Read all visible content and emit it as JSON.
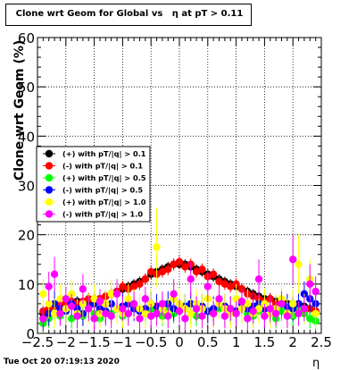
{
  "footer": {
    "timestamp": "Tue Oct 20 07:19:13 2020"
  },
  "chart_data": {
    "type": "scatter",
    "title": "Clone wrt Geom for Global vs   η at pT > 0.11",
    "xlabel": "η",
    "ylabel": "Clone wrt Geom (%)",
    "xlim": [
      -2.5,
      2.5
    ],
    "ylim": [
      0,
      60
    ],
    "x_ticks": [
      "−2.5",
      "−2",
      "−1.5",
      "−1",
      "−0.5",
      "0",
      "0.5",
      "1",
      "1.5",
      "2",
      "2.5"
    ],
    "y_ticks": [
      "0",
      "10",
      "20",
      "30",
      "40",
      "50",
      "60"
    ],
    "grid": true,
    "legend_position": "middle-left",
    "x": [
      -2.4,
      -2.3,
      -2.2,
      -2.1,
      -2.0,
      -1.9,
      -1.8,
      -1.7,
      -1.6,
      -1.5,
      -1.4,
      -1.3,
      -1.2,
      -1.1,
      -1.0,
      -0.9,
      -0.8,
      -0.7,
      -0.6,
      -0.5,
      -0.4,
      -0.3,
      -0.2,
      -0.1,
      0.0,
      0.1,
      0.2,
      0.3,
      0.4,
      0.5,
      0.6,
      0.7,
      0.8,
      0.9,
      1.0,
      1.1,
      1.2,
      1.3,
      1.4,
      1.5,
      1.6,
      1.7,
      1.8,
      1.9,
      2.0,
      2.1,
      2.2,
      2.3,
      2.4
    ],
    "series": [
      {
        "name": "(+) with pT/|q| > 0.1",
        "color": "#000000",
        "values": [
          4,
          5,
          5.5,
          6,
          6.5,
          6,
          6.5,
          6,
          6.5,
          7,
          7,
          7.5,
          8,
          8.5,
          9,
          9.5,
          10,
          10.5,
          11,
          12,
          12.5,
          13,
          13.5,
          14,
          14,
          14,
          13.5,
          13,
          12.5,
          12,
          11.5,
          11,
          10.5,
          10,
          9.5,
          9,
          8.5,
          8,
          7.5,
          7,
          7,
          6.5,
          6.5,
          6,
          6,
          5.5,
          5.5,
          5,
          4.5
        ],
        "errors": [
          1,
          1,
          1,
          1,
          1,
          1,
          1,
          1,
          1,
          1,
          1,
          1,
          1,
          1,
          1,
          1,
          1,
          1,
          1,
          1,
          1,
          1,
          1,
          1,
          1,
          1,
          1,
          1,
          1,
          1,
          1,
          1,
          1,
          1,
          1,
          1,
          1,
          1,
          1,
          1,
          1,
          1,
          1,
          1,
          1,
          1,
          1,
          1,
          1
        ]
      },
      {
        "name": "(-) with pT/|q| > 0.1",
        "color": "#ff0000",
        "values": [
          4.5,
          5,
          5.5,
          6,
          6,
          6.5,
          6,
          6.5,
          7,
          6.5,
          7,
          7.5,
          8,
          8.5,
          9.5,
          9,
          9.5,
          10,
          11,
          12.5,
          12,
          12.5,
          13,
          14,
          14.5,
          13.5,
          14,
          12.5,
          13,
          11.5,
          12,
          10.5,
          10,
          9.5,
          10,
          9,
          8,
          7.5,
          7,
          6.5,
          7,
          6,
          6.5,
          5.5,
          6,
          5.5,
          5,
          5,
          4.5
        ],
        "errors": [
          1.2,
          1.2,
          1.2,
          1.2,
          1.2,
          1.2,
          1.2,
          1.2,
          1.2,
          1.2,
          1.2,
          1.2,
          1.2,
          1.2,
          1.2,
          1.2,
          1.2,
          1.2,
          1.2,
          1.2,
          1.2,
          1.2,
          1.2,
          1.2,
          1.2,
          1.2,
          1.2,
          1.2,
          1.2,
          1.2,
          1.2,
          1.2,
          1.2,
          1.2,
          1.2,
          1.2,
          1.2,
          1.2,
          1.2,
          1.2,
          1.2,
          1.2,
          1.2,
          1.2,
          1.2,
          1.2,
          1.2,
          1.2,
          1.2
        ]
      },
      {
        "name": "(+) with pT/|q| > 0.5",
        "color": "#00ff00",
        "values": [
          2,
          3,
          4,
          3.5,
          4.5,
          3,
          4,
          3.5,
          5,
          4,
          3,
          4.5,
          4,
          5,
          3.5,
          4,
          5,
          4.5,
          4,
          5,
          4.5,
          3.5,
          5,
          4,
          4.5,
          5,
          4,
          3.5,
          5,
          4.5,
          4,
          5,
          3.5,
          4,
          4.5,
          5,
          4,
          3.5,
          4.5,
          5,
          4,
          3,
          4.5,
          4,
          3.5,
          5,
          4,
          3,
          2.5
        ],
        "errors": [
          2,
          2,
          2,
          2,
          2,
          2,
          2,
          2,
          2,
          2,
          2,
          2,
          2,
          2,
          2,
          2,
          2,
          2,
          2,
          2,
          2,
          2,
          2,
          2,
          2,
          2,
          2,
          2,
          2,
          2,
          2,
          2,
          2,
          2,
          2,
          2,
          2,
          2,
          2,
          2,
          2,
          2,
          2,
          2,
          2,
          2,
          2,
          2,
          2
        ]
      },
      {
        "name": "(-) with pT/|q| > 0.5",
        "color": "#0000ff",
        "values": [
          3,
          4,
          6,
          5,
          4.5,
          6,
          5,
          4,
          5.5,
          6,
          5,
          4.5,
          6,
          5,
          5.5,
          6,
          5,
          4.5,
          5,
          6,
          5.5,
          5,
          6,
          5,
          4.5,
          5.5,
          6,
          5,
          5.5,
          4.5,
          5,
          6,
          5.5,
          5,
          4.5,
          6,
          5,
          5.5,
          6,
          5,
          4.5,
          5,
          6,
          5.5,
          5,
          6,
          8,
          7,
          6
        ],
        "errors": [
          2.5,
          2.5,
          2.5,
          2.5,
          2.5,
          2.5,
          2.5,
          2.5,
          2.5,
          2.5,
          2.5,
          2.5,
          2.5,
          2.5,
          2.5,
          2.5,
          2.5,
          2.5,
          2.5,
          2.5,
          2.5,
          2.5,
          2.5,
          2.5,
          2.5,
          2.5,
          2.5,
          2.5,
          2.5,
          2.5,
          2.5,
          2.5,
          2.5,
          2.5,
          2.5,
          2.5,
          2.5,
          2.5,
          2.5,
          2.5,
          2.5,
          2.5,
          2.5,
          2.5,
          2.5,
          2.5,
          2.5,
          2.5,
          2.5
        ]
      },
      {
        "name": "(+) with pT/|q| > 1.0",
        "color": "#ffff00",
        "values": [
          8,
          6,
          4,
          7,
          5,
          8,
          4,
          6,
          5,
          7,
          4,
          6,
          8,
          5,
          4,
          7,
          6,
          5,
          4,
          6,
          17.5,
          5,
          4,
          7,
          6,
          5,
          4,
          6,
          5,
          7,
          4,
          6,
          5,
          4,
          7,
          5,
          6,
          4,
          5,
          6,
          4,
          5,
          7,
          4,
          6,
          14,
          5,
          11,
          4
        ],
        "errors": [
          3,
          3,
          3,
          3,
          3,
          3,
          3,
          3,
          3,
          3,
          3,
          3,
          3,
          3,
          3,
          3,
          3,
          3,
          3,
          3,
          8,
          3,
          3,
          3,
          3,
          3,
          3,
          3,
          3,
          3,
          3,
          3,
          3,
          3,
          3,
          3,
          3,
          3,
          3,
          3,
          3,
          3,
          3,
          3,
          3,
          6,
          3,
          4,
          3
        ]
      },
      {
        "name": "(-) with pT/|q| > 1.0",
        "color": "#ff00ff",
        "values": [
          3,
          9.5,
          12,
          4,
          7,
          5.5,
          3.5,
          9,
          5,
          3,
          6.5,
          4,
          3.5,
          8,
          5,
          4,
          6,
          3,
          7,
          3.5,
          4,
          6,
          3.5,
          8,
          4.5,
          3,
          11,
          5,
          3.5,
          9.5,
          4,
          7,
          3.5,
          5,
          4,
          6.5,
          3,
          4.5,
          11,
          3.5,
          5,
          4,
          6,
          3.5,
          15,
          4,
          5,
          10,
          8.5
        ],
        "errors": [
          2.5,
          3,
          3.5,
          2.5,
          2.5,
          2.5,
          2.5,
          3,
          2.5,
          2.5,
          2.5,
          2.5,
          2.5,
          3,
          2.5,
          2.5,
          2.5,
          2.5,
          2.5,
          2.5,
          2.5,
          2.5,
          2.5,
          3,
          2.5,
          2.5,
          3.5,
          2.5,
          2.5,
          3,
          2.5,
          2.5,
          2.5,
          2.5,
          2.5,
          2.5,
          2.5,
          2.5,
          4,
          2.5,
          2.5,
          2.5,
          2.5,
          2.5,
          5,
          2.5,
          2.5,
          4,
          3
        ]
      }
    ]
  }
}
